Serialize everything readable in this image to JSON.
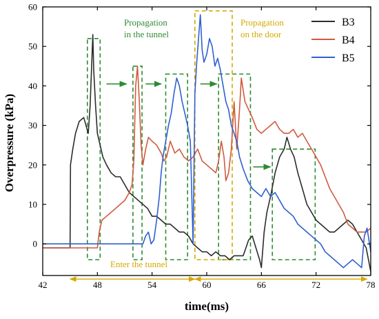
{
  "chart_data": {
    "type": "line",
    "xlabel": "time(ms)",
    "ylabel": "Overpressure (kPa)",
    "xlim": [
      42,
      78
    ],
    "ylim": [
      -8,
      60
    ],
    "xticks": [
      42,
      48,
      54,
      60,
      66,
      72,
      78
    ],
    "yticks": [
      0,
      10,
      20,
      30,
      40,
      50,
      60
    ],
    "legend_position": "top-right",
    "series": [
      {
        "name": "B3",
        "color": "#2b2b2b",
        "x": [
          42,
          45.0,
          45.05,
          45.3,
          45.6,
          46.0,
          46.5,
          47.0,
          47.2,
          47.4,
          47.5,
          47.6,
          47.8,
          48.0,
          48.3,
          48.6,
          49.0,
          49.5,
          50.0,
          50.5,
          51.0,
          51.5,
          52.0,
          52.5,
          53.0,
          53.5,
          54.0,
          54.5,
          55.0,
          55.5,
          56.0,
          56.5,
          57.0,
          57.5,
          58.0,
          58.5,
          59.0,
          59.5,
          60.0,
          60.5,
          61.0,
          61.5,
          62.0,
          62.5,
          63.0,
          63.5,
          64.0,
          64.3,
          64.6,
          65.0,
          65.4,
          65.8,
          66.0,
          66.3,
          66.6,
          67.0,
          67.5,
          68.0,
          68.5,
          68.8,
          69.2,
          69.6,
          70.0,
          70.5,
          71.0,
          71.5,
          72.0,
          72.5,
          73.0,
          73.5,
          74.0,
          74.5,
          75.0,
          75.5,
          76.0,
          76.5,
          77.0,
          77.5,
          78.0
        ],
        "y": [
          -1,
          -1,
          20,
          24,
          28,
          31,
          32,
          28,
          35,
          47,
          53,
          44,
          35,
          28,
          25,
          22,
          20,
          18,
          17,
          17,
          15,
          13,
          12,
          11,
          10,
          9,
          7,
          7,
          6,
          5,
          5,
          4,
          3,
          3,
          2,
          0,
          -1,
          -2,
          -2,
          -3,
          -2,
          -3,
          -3,
          -4,
          -3,
          -3,
          -3,
          -1,
          1,
          2,
          -1,
          -4,
          -6,
          3,
          8,
          12,
          18,
          22,
          24,
          27,
          24,
          22,
          18,
          14,
          10,
          8,
          6,
          5,
          4,
          3,
          3,
          4,
          5,
          6,
          5,
          3,
          1,
          -1,
          -7
        ]
      },
      {
        "name": "B4",
        "color": "#d05a3e",
        "x": [
          42,
          45.0,
          47.0,
          48.0,
          48.2,
          48.5,
          49.0,
          49.5,
          50.0,
          50.5,
          51.0,
          51.5,
          51.8,
          52.0,
          52.2,
          52.4,
          52.6,
          52.8,
          53.0,
          53.3,
          53.6,
          54.0,
          54.5,
          55.0,
          55.3,
          55.6,
          56.0,
          56.5,
          57.0,
          57.5,
          58.0,
          58.5,
          59.0,
          59.5,
          60.0,
          60.5,
          61.0,
          61.3,
          61.6,
          61.9,
          62.1,
          62.4,
          62.7,
          63.0,
          63.3,
          63.6,
          63.8,
          64.2,
          64.6,
          65.0,
          65.5,
          66.0,
          66.5,
          67.0,
          67.5,
          68.0,
          68.5,
          69.0,
          69.5,
          70.0,
          70.5,
          71.0,
          71.5,
          72.0,
          72.5,
          73.0,
          73.5,
          74.0,
          74.5,
          75.0,
          75.5,
          76.0,
          76.5,
          77.0,
          77.5,
          78.0
        ],
        "y": [
          -1,
          -1,
          -1,
          -1,
          3,
          6,
          7,
          8,
          9,
          10,
          11,
          13,
          15,
          21,
          40,
          45,
          36,
          25,
          20,
          24,
          27,
          26,
          25,
          23,
          21,
          22,
          26,
          23,
          24,
          22,
          21,
          22,
          24,
          21,
          20,
          19,
          18,
          21,
          26,
          22,
          16,
          18,
          24,
          36,
          24,
          34,
          42,
          36,
          34,
          32,
          29,
          28,
          29,
          30,
          31,
          29,
          28,
          28,
          29,
          27,
          28,
          26,
          24,
          22,
          20,
          17,
          14,
          12,
          10,
          8,
          5,
          4,
          3,
          3,
          3,
          4
        ]
      },
      {
        "name": "B5",
        "color": "#2f5fd0",
        "x": [
          42,
          45.0,
          48.0,
          51.0,
          53.0,
          53.3,
          53.6,
          53.9,
          54.2,
          54.5,
          54.8,
          55.0,
          55.2,
          55.5,
          55.8,
          56.1,
          56.4,
          56.7,
          57.0,
          57.3,
          57.6,
          57.9,
          58.2,
          58.5,
          58.7,
          58.9,
          59.1,
          59.3,
          59.5,
          59.7,
          60.0,
          60.3,
          60.6,
          60.9,
          61.2,
          61.5,
          61.8,
          62.1,
          62.4,
          62.7,
          63.0,
          63.3,
          63.6,
          64.0,
          64.5,
          65.0,
          65.5,
          66.0,
          66.5,
          67.0,
          67.5,
          68.0,
          68.5,
          69.0,
          69.5,
          70.0,
          70.5,
          71.0,
          71.5,
          72.0,
          72.5,
          73.0,
          73.5,
          74.0,
          74.5,
          75.0,
          75.5,
          76.0,
          76.5,
          77.0,
          77.3,
          77.6,
          78.0
        ],
        "y": [
          0,
          0,
          0,
          0,
          0,
          2,
          3,
          0,
          1,
          6,
          12,
          18,
          22,
          26,
          30,
          33,
          38,
          42,
          40,
          36,
          33,
          30,
          26,
          0,
          38,
          46,
          52,
          58,
          49,
          46,
          48,
          52,
          50,
          45,
          47,
          44,
          40,
          36,
          34,
          30,
          28,
          26,
          22,
          19,
          16,
          14,
          13,
          12,
          14,
          12,
          13,
          11,
          9,
          8,
          7,
          5,
          4,
          3,
          2,
          1,
          0,
          -2,
          -3,
          -4,
          -5,
          -6,
          -5,
          -4,
          -5,
          -6,
          2,
          4,
          -2
        ]
      }
    ],
    "annotations": [
      {
        "text": "Propagation",
        "color": "#2e8b30"
      },
      {
        "text": "in the tunnel",
        "color": "#2e8b30"
      },
      {
        "text": "Propagation",
        "color": "#d4a800"
      },
      {
        "text": "on the door",
        "color": "#d4a800"
      },
      {
        "text": "Enter the tunnel",
        "color": "#d4a800"
      }
    ],
    "boxes": [
      {
        "x0": 46.9,
        "x1": 48.3,
        "y0": -4,
        "y1": 52,
        "color": "#2e8b30"
      },
      {
        "x0": 51.9,
        "x1": 52.9,
        "y0": -4,
        "y1": 45,
        "color": "#2e8b30"
      },
      {
        "x0": 55.5,
        "x1": 57.9,
        "y0": -4,
        "y1": 43,
        "color": "#2e8b30"
      },
      {
        "x0": 61.3,
        "x1": 64.8,
        "y0": -4,
        "y1": 43,
        "color": "#2e8b30"
      },
      {
        "x0": 67.2,
        "x1": 71.9,
        "y0": -4,
        "y1": 24,
        "color": "#2e8b30"
      },
      {
        "x0": 58.7,
        "x1": 62.8,
        "y0": -4,
        "y1": 59,
        "color": "#d4a800"
      }
    ],
    "arrows": [
      {
        "x0": 49.0,
        "x1": 51.2,
        "y": 40.5,
        "color": "#2e8b30"
      },
      {
        "x0": 53.3,
        "x1": 55.0,
        "y": 40.5,
        "color": "#2e8b30"
      },
      {
        "x0": 59.3,
        "x1": 61.1,
        "y": 40.5,
        "color": "#2e8b30"
      },
      {
        "x0": 65.1,
        "x1": 67.0,
        "y": 19.5,
        "color": "#2e8b30"
      }
    ],
    "spans": [
      {
        "x0": 45.0,
        "x1": 58.7,
        "y": -8.9,
        "color": "#d4a800"
      },
      {
        "x0": 58.7,
        "x1": 77.6,
        "y": -8.9,
        "color": "#d4a800"
      }
    ]
  }
}
